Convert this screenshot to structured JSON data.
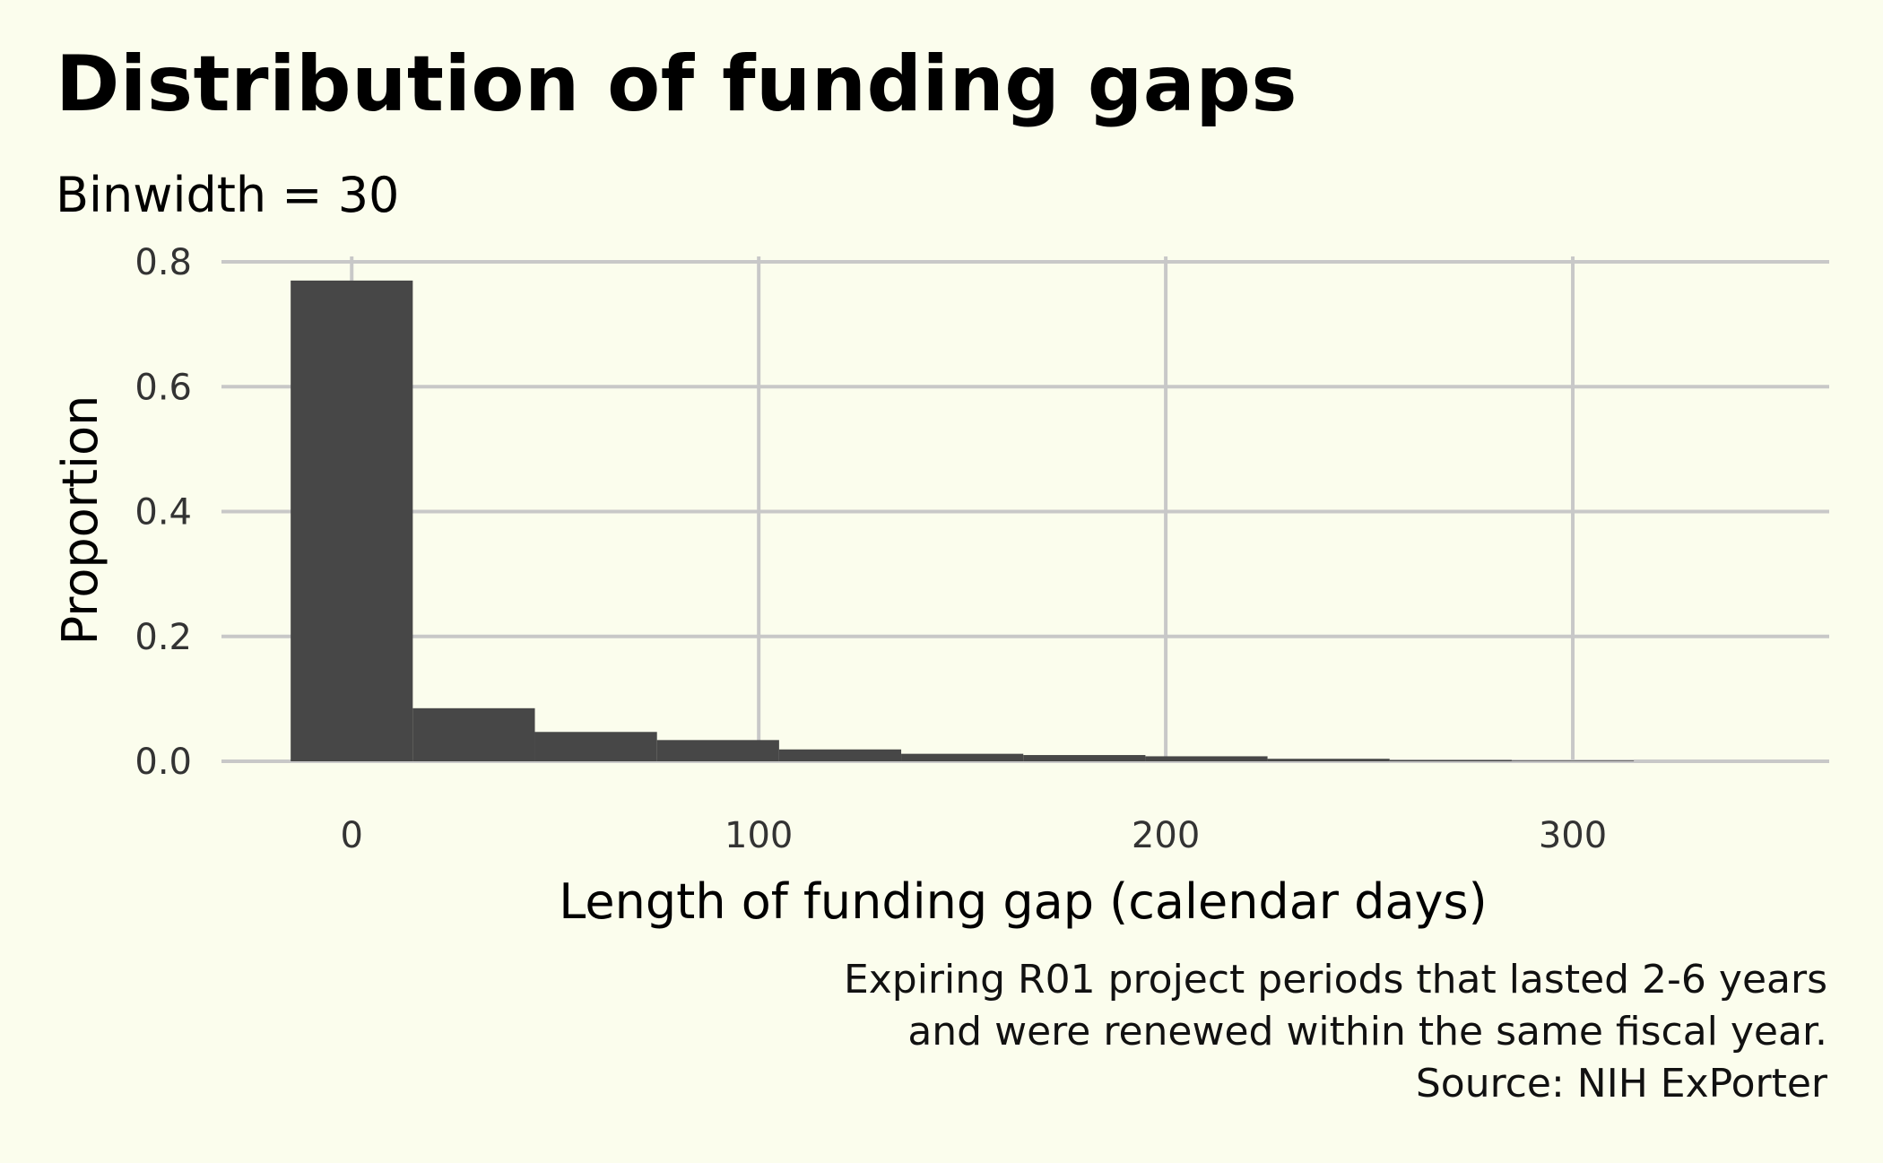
{
  "chart_data": {
    "type": "bar",
    "title": "Distribution of funding gaps",
    "subtitle": "Binwidth = 30",
    "xlabel": "Length of funding gap (calendar days)",
    "ylabel": "Proportion",
    "binwidth": 30,
    "bins": [
      {
        "x": 0,
        "value": 0.77
      },
      {
        "x": 30,
        "value": 0.085
      },
      {
        "x": 60,
        "value": 0.047
      },
      {
        "x": 90,
        "value": 0.034
      },
      {
        "x": 120,
        "value": 0.019
      },
      {
        "x": 150,
        "value": 0.012
      },
      {
        "x": 180,
        "value": 0.01
      },
      {
        "x": 210,
        "value": 0.008
      },
      {
        "x": 240,
        "value": 0.004
      },
      {
        "x": 270,
        "value": 0.002
      },
      {
        "x": 300,
        "value": 0.001
      }
    ],
    "xlim": [
      -32,
      363
    ],
    "ylim": [
      0,
      0.8
    ],
    "xticks": [
      {
        "value": 0,
        "label": "0"
      },
      {
        "value": 100,
        "label": "100"
      },
      {
        "value": 200,
        "label": "200"
      },
      {
        "value": 300,
        "label": "300"
      }
    ],
    "yticks": [
      {
        "value": 0,
        "label": "0.0"
      },
      {
        "value": 0.2,
        "label": "0.2"
      },
      {
        "value": 0.4,
        "label": "0.4"
      },
      {
        "value": 0.6,
        "label": "0.6"
      },
      {
        "value": 0.8,
        "label": "0.8"
      }
    ],
    "grid": true,
    "caption": [
      "Expiring R01 project periods that lasted 2-6 years",
      "and were renewed within the same fiscal year.",
      "Source: NIH ExPorter"
    ]
  },
  "colors": {
    "background": "#fbfded",
    "bar": "#474747",
    "grid": "#c8c8c8",
    "tick_text": "#333333"
  }
}
